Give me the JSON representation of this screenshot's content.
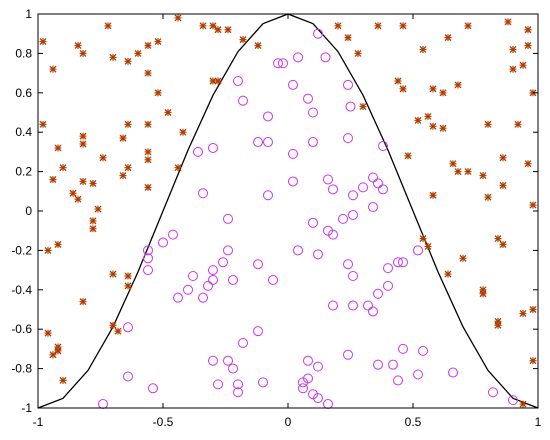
{
  "chart_data": {
    "type": "scatter",
    "title": "",
    "xlabel": "",
    "ylabel": "",
    "xlim": [
      -1,
      1
    ],
    "ylim": [
      -1,
      1
    ],
    "grid": false,
    "legend": "none",
    "x_ticks": [
      -1,
      -0.5,
      0,
      0.5,
      1
    ],
    "x_tick_labels": [
      "-1",
      "-0.5",
      "0",
      "0.5",
      "1"
    ],
    "y_ticks": [
      -1,
      -0.8,
      -0.6,
      -0.4,
      -0.2,
      0,
      0.2,
      0.4,
      0.6,
      0.8,
      1
    ],
    "y_tick_labels": [
      "-1",
      "-0.8",
      "-0.6",
      "-0.4",
      "-0.2",
      "0",
      "0.2",
      "0.4",
      "0.6",
      "0.8",
      "1"
    ],
    "colors": {
      "curve": "#000000",
      "inside_marker": "#cc33ee",
      "outside_marker_primary": "#dd2200",
      "outside_marker_secondary": "#557700",
      "axes": "#000000"
    },
    "series": [
      {
        "marker": "line",
        "x": [
          -1,
          -0.9,
          -0.8,
          -0.7,
          -0.6,
          -0.5,
          -0.4,
          -0.3,
          -0.2,
          -0.1,
          0,
          0.1,
          0.2,
          0.3,
          0.4,
          0.5,
          0.6,
          0.7,
          0.8,
          0.9,
          1
        ],
        "y": [
          -1,
          -0.951,
          -0.809,
          -0.588,
          -0.309,
          0,
          0.309,
          0.588,
          0.809,
          0.951,
          1,
          0.951,
          0.809,
          0.588,
          0.309,
          0,
          -0.309,
          -0.588,
          -0.809,
          -0.951,
          -1
        ]
      },
      {
        "marker": "circle",
        "points": [
          [
            -0.2,
            0.66
          ],
          [
            -0.04,
            0.75
          ],
          [
            -0.02,
            0.75
          ],
          [
            0.02,
            0.64
          ],
          [
            0.04,
            0.78
          ],
          [
            0.12,
            0.9
          ],
          [
            0.15,
            0.78
          ],
          [
            0.24,
            0.64
          ],
          [
            0.25,
            0.53
          ],
          [
            -0.18,
            0.56
          ],
          [
            -0.08,
            0.48
          ],
          [
            0.08,
            0.57
          ],
          [
            0.1,
            0.5
          ],
          [
            0.1,
            0.35
          ],
          [
            -0.3,
            0.32
          ],
          [
            -0.36,
            0.3
          ],
          [
            -0.12,
            0.35
          ],
          [
            -0.08,
            0.35
          ],
          [
            0.24,
            0.37
          ],
          [
            0.38,
            0.33
          ],
          [
            0.02,
            0.29
          ],
          [
            -0.34,
            0.09
          ],
          [
            -0.08,
            0.08
          ],
          [
            0.02,
            0.15
          ],
          [
            0.16,
            0.16
          ],
          [
            0.18,
            0.11
          ],
          [
            0.26,
            0.08
          ],
          [
            0.3,
            0.12
          ],
          [
            0.34,
            0.17
          ],
          [
            0.36,
            0.14
          ],
          [
            0.38,
            0.11
          ],
          [
            0.34,
            0.02
          ],
          [
            0.26,
            -0.02
          ],
          [
            0.22,
            -0.04
          ],
          [
            -0.24,
            -0.04
          ],
          [
            -0.46,
            -0.12
          ],
          [
            -0.5,
            -0.16
          ],
          [
            -0.56,
            -0.2
          ],
          [
            -0.56,
            -0.24
          ],
          [
            -0.56,
            -0.3
          ],
          [
            -0.24,
            -0.2
          ],
          [
            0.1,
            -0.06
          ],
          [
            0.16,
            -0.1
          ],
          [
            0.18,
            -0.12
          ],
          [
            0.04,
            -0.2
          ],
          [
            -0.26,
            -0.26
          ],
          [
            -0.12,
            -0.27
          ],
          [
            0.12,
            -0.22
          ],
          [
            0.24,
            -0.27
          ],
          [
            0.26,
            -0.33
          ],
          [
            0.4,
            -0.29
          ],
          [
            0.44,
            -0.26
          ],
          [
            0.46,
            -0.26
          ],
          [
            0.52,
            -0.2
          ],
          [
            -0.3,
            -0.3
          ],
          [
            -0.38,
            -0.33
          ],
          [
            -0.4,
            -0.4
          ],
          [
            -0.3,
            -0.35
          ],
          [
            -0.22,
            -0.35
          ],
          [
            -0.06,
            -0.35
          ],
          [
            -0.44,
            -0.44
          ],
          [
            -0.34,
            -0.44
          ],
          [
            -0.32,
            -0.38
          ],
          [
            0.18,
            -0.48
          ],
          [
            0.26,
            -0.48
          ],
          [
            0.32,
            -0.48
          ],
          [
            0.36,
            -0.42
          ],
          [
            0.4,
            -0.38
          ],
          [
            0.34,
            -0.51
          ],
          [
            -0.64,
            -0.59
          ],
          [
            -0.18,
            -0.67
          ],
          [
            -0.12,
            -0.61
          ],
          [
            -0.64,
            -0.84
          ],
          [
            -0.3,
            -0.76
          ],
          [
            -0.24,
            -0.76
          ],
          [
            -0.22,
            -0.8
          ],
          [
            -0.28,
            -0.88
          ],
          [
            -0.2,
            -0.88
          ],
          [
            -0.1,
            -0.87
          ],
          [
            0.08,
            -0.76
          ],
          [
            0.12,
            -0.79
          ],
          [
            0.24,
            -0.73
          ],
          [
            0.36,
            -0.78
          ],
          [
            0.42,
            -0.78
          ],
          [
            0.46,
            -0.7
          ],
          [
            0.54,
            -0.71
          ],
          [
            0.44,
            -0.86
          ],
          [
            0.52,
            -0.83
          ],
          [
            0.66,
            -0.82
          ],
          [
            0.06,
            -0.87
          ],
          [
            0.08,
            -0.85
          ],
          [
            0.06,
            -0.9
          ],
          [
            0.1,
            -0.93
          ],
          [
            0.12,
            -0.95
          ],
          [
            0.16,
            -0.98
          ],
          [
            -0.54,
            -0.9
          ],
          [
            -0.2,
            -0.92
          ],
          [
            0.82,
            -0.92
          ],
          [
            0.9,
            -0.96
          ],
          [
            -0.74,
            -0.98
          ]
        ]
      },
      {
        "marker": "star",
        "points": [
          [
            -0.98,
            0.86
          ],
          [
            -0.94,
            0.72
          ],
          [
            -0.84,
            0.84
          ],
          [
            -0.82,
            0.8
          ],
          [
            -0.72,
            0.94
          ],
          [
            -0.7,
            0.78
          ],
          [
            -0.64,
            0.76
          ],
          [
            -0.6,
            0.8
          ],
          [
            -0.56,
            0.84
          ],
          [
            -0.52,
            0.86
          ],
          [
            -0.44,
            0.98
          ],
          [
            -0.34,
            0.94
          ],
          [
            -0.3,
            0.94
          ],
          [
            -0.28,
            0.92
          ],
          [
            -0.24,
            0.92
          ],
          [
            -0.18,
            0.87
          ],
          [
            -0.12,
            0.84
          ],
          [
            -0.56,
            0.7
          ],
          [
            -0.52,
            0.6
          ],
          [
            -0.3,
            0.66
          ],
          [
            -0.28,
            0.66
          ],
          [
            -0.64,
            0.44
          ],
          [
            -0.66,
            0.37
          ],
          [
            -0.56,
            0.44
          ],
          [
            -0.48,
            0.5
          ],
          [
            -0.42,
            0.4
          ],
          [
            -0.98,
            0.44
          ],
          [
            -0.92,
            0.32
          ],
          [
            -0.82,
            0.38
          ],
          [
            -0.82,
            0.34
          ],
          [
            -0.94,
            0.16
          ],
          [
            -0.9,
            0.22
          ],
          [
            -0.86,
            0.09
          ],
          [
            -0.82,
            0.15
          ],
          [
            -0.78,
            0.14
          ],
          [
            -0.74,
            0.27
          ],
          [
            -0.64,
            0.22
          ],
          [
            -0.56,
            0.3
          ],
          [
            -0.56,
            0.26
          ],
          [
            -0.44,
            0.22
          ],
          [
            -0.56,
            0.12
          ],
          [
            -0.66,
            0.18
          ],
          [
            -0.84,
            0.06
          ],
          [
            -0.76,
            0.01
          ],
          [
            -0.78,
            -0.05
          ],
          [
            -0.78,
            -0.09
          ],
          [
            -0.92,
            -0.17
          ],
          [
            -0.96,
            -0.2
          ],
          [
            -0.7,
            -0.32
          ],
          [
            -0.64,
            -0.33
          ],
          [
            -0.64,
            -0.38
          ],
          [
            -0.82,
            -0.46
          ],
          [
            -0.7,
            -0.58
          ],
          [
            -0.68,
            -0.61
          ],
          [
            -0.96,
            -0.62
          ],
          [
            -0.92,
            -0.69
          ],
          [
            -0.92,
            -0.71
          ],
          [
            -0.94,
            -0.73
          ],
          [
            -0.9,
            -0.86
          ],
          [
            0.2,
            0.94
          ],
          [
            0.24,
            0.88
          ],
          [
            0.28,
            0.8
          ],
          [
            0.36,
            0.94
          ],
          [
            0.46,
            0.94
          ],
          [
            0.54,
            0.82
          ],
          [
            0.64,
            0.88
          ],
          [
            0.72,
            0.94
          ],
          [
            0.88,
            0.96
          ],
          [
            0.9,
            0.82
          ],
          [
            0.96,
            0.92
          ],
          [
            0.96,
            0.84
          ],
          [
            0.44,
            0.66
          ],
          [
            0.46,
            0.62
          ],
          [
            0.58,
            0.62
          ],
          [
            0.62,
            0.6
          ],
          [
            0.68,
            0.64
          ],
          [
            0.9,
            0.72
          ],
          [
            0.94,
            0.74
          ],
          [
            0.98,
            0.6
          ],
          [
            0.3,
            0.53
          ],
          [
            0.52,
            0.46
          ],
          [
            0.56,
            0.48
          ],
          [
            0.58,
            0.43
          ],
          [
            0.62,
            0.42
          ],
          [
            0.8,
            0.44
          ],
          [
            0.92,
            0.44
          ],
          [
            0.48,
            0.28
          ],
          [
            0.66,
            0.24
          ],
          [
            0.68,
            0.2
          ],
          [
            0.72,
            0.2
          ],
          [
            0.78,
            0.18
          ],
          [
            0.86,
            0.27
          ],
          [
            0.96,
            0.24
          ],
          [
            0.58,
            0.08
          ],
          [
            0.8,
            0.07
          ],
          [
            0.86,
            0.13
          ],
          [
            0.98,
            0.03
          ],
          [
            0.54,
            -0.14
          ],
          [
            0.56,
            -0.18
          ],
          [
            0.7,
            -0.24
          ],
          [
            0.84,
            -0.14
          ],
          [
            0.86,
            -0.17
          ],
          [
            0.64,
            -0.32
          ],
          [
            0.78,
            -0.4
          ],
          [
            0.78,
            -0.42
          ],
          [
            0.84,
            -0.56
          ],
          [
            0.84,
            -0.58
          ],
          [
            0.94,
            -0.52
          ],
          [
            0.98,
            -0.5
          ],
          [
            0.98,
            -0.76
          ],
          [
            0.94,
            -0.98
          ]
        ]
      }
    ]
  }
}
